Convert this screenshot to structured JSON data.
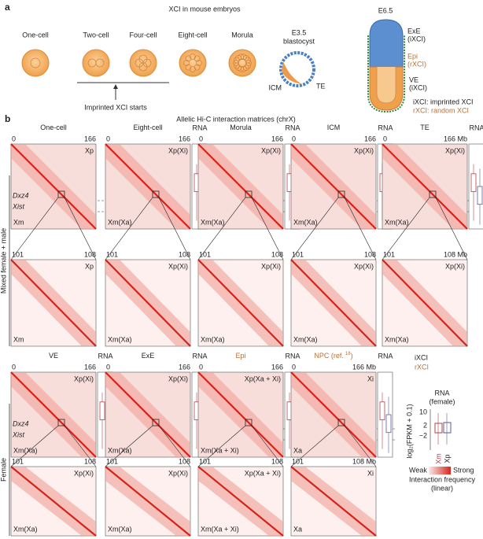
{
  "panel_a": {
    "label": "a",
    "title": "XCI in mouse embryos",
    "stages": [
      "One-cell",
      "Two-cell",
      "Four-cell",
      "Eight-cell",
      "Morula"
    ],
    "note": "Imprinted XCI starts",
    "blastocyst": {
      "title": [
        "E3.5",
        "blastocyst"
      ],
      "icm": "ICM",
      "te": "TE"
    },
    "e65": {
      "title": "E6.5",
      "exe": [
        "ExE",
        "(iXCI)"
      ],
      "epi": [
        "Epi",
        "(rXCI)"
      ],
      "ve": [
        "VE",
        "(iXCI)"
      ],
      "legend": [
        "iXCI: imprinted XCI",
        "rXCI: random XCI"
      ]
    }
  },
  "panel_b": {
    "label": "b",
    "title": "Allelic Hi-C interaction matrices (chrX)",
    "rows": [
      {
        "side_label": "Mixed female + male",
        "loci": [
          "Dxz4",
          "Xist"
        ],
        "panels": [
          {
            "title": "One-cell",
            "start": "0",
            "end": "166",
            "top": "Xp",
            "bottom": "Xm",
            "zoom_start": "101",
            "zoom_end": "108",
            "zoom_top": "Xp",
            "zoom_bottom": "Xm"
          },
          {
            "title": "Eight-cell",
            "start": "0",
            "end": "166",
            "top": "Xp(Xi)",
            "bottom": "Xm(Xa)",
            "zoom_start": "101",
            "zoom_end": "108",
            "zoom_top": "Xp(Xi)",
            "zoom_bottom": "Xm(Xa)",
            "rna": "RNA"
          },
          {
            "title": "Morula",
            "start": "0",
            "end": "166",
            "top": "Xp(Xi)",
            "bottom": "Xm(Xa)",
            "zoom_start": "101",
            "zoom_end": "108",
            "zoom_top": "Xp(Xi)",
            "zoom_bottom": "Xm(Xa)",
            "rna": "RNA"
          },
          {
            "title": "ICM",
            "start": "0",
            "end": "166",
            "top": "Xp(Xi)",
            "bottom": "Xm(Xa)",
            "zoom_start": "101",
            "zoom_end": "108",
            "zoom_top": "Xp(Xi)",
            "zoom_bottom": "Xm(Xa)",
            "rna": "RNA"
          },
          {
            "title": "TE",
            "start": "0",
            "end": "166 Mb",
            "top": "Xp(Xi)",
            "bottom": "Xm(Xa)",
            "zoom_start": "101",
            "zoom_end": "108 Mb",
            "zoom_top": "Xp(Xi)",
            "zoom_bottom": "Xm(Xa)",
            "rna": "RNA"
          }
        ]
      },
      {
        "side_label": "Female",
        "loci": [
          "Dxz4",
          "Xist"
        ],
        "panels": [
          {
            "title": "VE",
            "start": "0",
            "end": "166",
            "top": "Xp(Xi)",
            "bottom": "Xm(Xa)",
            "zoom_start": "101",
            "zoom_end": "108",
            "zoom_top": "Xp(Xi)",
            "zoom_bottom": "Xm(Xa)",
            "rna": "RNA"
          },
          {
            "title": "ExE",
            "start": "0",
            "end": "166",
            "top": "Xp(Xi)",
            "bottom": "Xm(Xa)",
            "zoom_start": "101",
            "zoom_end": "108",
            "zoom_top": "Xp(Xi)",
            "zoom_bottom": "Xm(Xa)",
            "rna": "RNA"
          },
          {
            "title": "Epi",
            "title_color": "#b5713a",
            "start": "0",
            "end": "166",
            "top": "Xp(Xa + Xi)",
            "bottom": "Xm(Xa + Xi)",
            "zoom_start": "101",
            "zoom_end": "108",
            "zoom_top": "Xp(Xa + Xi)",
            "zoom_bottom": "Xm(Xa + Xi)",
            "rna": "RNA"
          },
          {
            "title": "NPC (ref.",
            "title_ref": "18",
            "title_close": ")",
            "title_color": "#b5713a",
            "start": "0",
            "end": "166 Mb",
            "top": "Xi",
            "bottom": "Xa",
            "zoom_start": "101",
            "zoom_end": "108 Mb",
            "zoom_top": "Xi",
            "zoom_bottom": "Xa",
            "rna": "RNA"
          }
        ]
      }
    ],
    "legend": {
      "ixci": "iXCI",
      "rxci": "rXCI",
      "rna_title": [
        "RNA",
        "(female)"
      ],
      "axis_label": "log₂(FPKM + 0.1)",
      "ticks": [
        "10",
        "2",
        "−2"
      ],
      "alleles": [
        "Xm",
        "Xp"
      ],
      "weak": "Weak",
      "strong": "Strong",
      "freq": [
        "Interaction frequency",
        "(linear)"
      ]
    }
  }
}
